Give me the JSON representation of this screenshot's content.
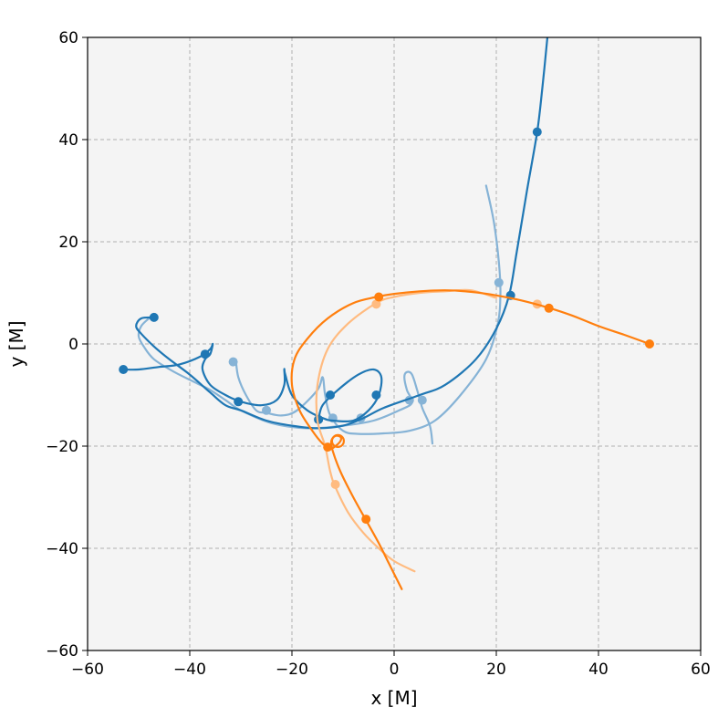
{
  "chart_data": {
    "type": "line",
    "title": "",
    "xlabel": "x [M]",
    "ylabel": "y [M]",
    "xlim": [
      -60,
      60
    ],
    "ylim": [
      -60,
      60
    ],
    "xticks": [
      -60,
      -40,
      -20,
      0,
      20,
      40,
      60
    ],
    "yticks": [
      -60,
      -40,
      -20,
      0,
      20,
      40,
      60
    ],
    "xtick_labels": [
      "−60",
      "−40",
      "−20",
      "0",
      "20",
      "40",
      "60"
    ],
    "ytick_labels": [
      "−60",
      "−40",
      "−20",
      "0",
      "20",
      "40",
      "60"
    ],
    "grid": true,
    "colors": {
      "blue": "#1f77b4",
      "orange": "#ff7f0e",
      "light_blue": "#86b3d6",
      "light_orange": "#ffbb80",
      "panel": "#f4f4f4",
      "grid": "#b0b0b0"
    },
    "series": [
      {
        "color": "#86b3d6",
        "points": [
          [
            18,
            31
          ],
          [
            19.5,
            24
          ],
          [
            20.5,
            16
          ],
          [
            20.8,
            10
          ],
          [
            20.3,
            4
          ],
          [
            18,
            -3
          ],
          [
            13,
            -10
          ],
          [
            8,
            -15
          ],
          [
            3,
            -17
          ],
          [
            -2,
            -17.5
          ],
          [
            -7,
            -17.6
          ],
          [
            -10,
            -17
          ],
          [
            -12.5,
            -14
          ],
          [
            -13.5,
            -10
          ],
          [
            -14,
            -6.5
          ],
          [
            -15,
            -9
          ],
          [
            -19,
            -13
          ],
          [
            -22,
            -14
          ],
          [
            -25,
            -13.5
          ],
          [
            -27,
            -13
          ],
          [
            -29,
            -10
          ],
          [
            -30.5,
            -6.5
          ],
          [
            -31,
            -3
          ]
        ],
        "markers": [
          [
            20.5,
            12
          ],
          [
            -6.5,
            -14.5
          ],
          [
            -25,
            -13
          ],
          [
            -31.5,
            -3.5
          ]
        ]
      },
      {
        "color": "#86b3d6",
        "points": [
          [
            7.5,
            -19.5
          ],
          [
            7,
            -16
          ],
          [
            5.5,
            -12.5
          ],
          [
            4.5,
            -9
          ],
          [
            3.5,
            -6
          ],
          [
            2.5,
            -5.5
          ],
          [
            2,
            -6.5
          ],
          [
            2.5,
            -9
          ],
          [
            3.5,
            -11.5
          ],
          [
            1,
            -13
          ],
          [
            -4,
            -15
          ],
          [
            -10,
            -16
          ],
          [
            -17,
            -16.5
          ],
          [
            -24,
            -15.5
          ],
          [
            -30,
            -13
          ],
          [
            -33,
            -11
          ],
          [
            -36,
            -9
          ],
          [
            -39,
            -7.5
          ],
          [
            -43,
            -5.5
          ],
          [
            -47,
            -3
          ],
          [
            -49,
            -0.5
          ],
          [
            -50,
            1.5
          ],
          [
            -49.5,
            3.5
          ],
          [
            -48,
            5
          ]
        ],
        "markers": [
          [
            5.5,
            -11
          ],
          [
            3,
            -11
          ],
          [
            -12,
            -14.5
          ],
          [
            -14.8,
            -14.8
          ]
        ]
      },
      {
        "color": "#1f77b4",
        "points": [
          [
            30,
            60
          ],
          [
            29,
            50
          ],
          [
            28,
            41.5
          ],
          [
            26,
            30
          ],
          [
            24,
            18
          ],
          [
            22.5,
            9.5
          ],
          [
            20,
            3
          ],
          [
            16,
            -3
          ],
          [
            10,
            -8
          ],
          [
            5,
            -10
          ],
          [
            -2,
            -12.5
          ],
          [
            -6,
            -14.5
          ],
          [
            -10,
            -16
          ],
          [
            -15,
            -16.5
          ],
          [
            -20,
            -16
          ],
          [
            -25,
            -15
          ],
          [
            -30,
            -13
          ],
          [
            -33,
            -12
          ],
          [
            -36,
            -9.5
          ],
          [
            -40,
            -6
          ],
          [
            -44,
            -3
          ],
          [
            -47,
            -0.5
          ],
          [
            -49.5,
            2
          ],
          [
            -50.5,
            3.5
          ],
          [
            -49.5,
            5
          ],
          [
            -47,
            5.2
          ]
        ],
        "markers": [
          [
            28,
            41.5
          ],
          [
            22.8,
            9.5
          ],
          [
            -12.5,
            -10
          ],
          [
            -30.5,
            -11.3
          ],
          [
            -47,
            5.2
          ]
        ]
      },
      {
        "color": "#1f77b4",
        "points": [
          [
            -53,
            -5
          ],
          [
            -50,
            -5
          ],
          [
            -46,
            -4.5
          ],
          [
            -42,
            -4
          ],
          [
            -38,
            -2.5
          ],
          [
            -36,
            -1
          ],
          [
            -35.5,
            0
          ],
          [
            -36,
            -2
          ],
          [
            -37,
            -3
          ],
          [
            -37.5,
            -5
          ],
          [
            -36,
            -8
          ],
          [
            -33,
            -10
          ],
          [
            -30,
            -11.3
          ],
          [
            -26,
            -12
          ],
          [
            -23,
            -11
          ],
          [
            -21.5,
            -8
          ],
          [
            -21.5,
            -5
          ],
          [
            -21.3,
            -6
          ],
          [
            -20,
            -10
          ],
          [
            -17,
            -13
          ],
          [
            -14,
            -14.5
          ],
          [
            -12,
            -15
          ],
          [
            -8,
            -15
          ],
          [
            -5,
            -13
          ],
          [
            -3,
            -10
          ],
          [
            -2.5,
            -6.5
          ],
          [
            -4,
            -5
          ],
          [
            -7,
            -6
          ],
          [
            -11,
            -9
          ],
          [
            -14,
            -12
          ],
          [
            -14.8,
            -14.8
          ]
        ],
        "markers": [
          [
            -53,
            -5
          ],
          [
            -37,
            -2
          ],
          [
            -3.5,
            -10
          ],
          [
            -14.8,
            -14.8
          ]
        ]
      },
      {
        "color": "#ffbb80",
        "points": [
          [
            20,
            9
          ],
          [
            15,
            10.5
          ],
          [
            10,
            10.3
          ],
          [
            5,
            10
          ],
          [
            0,
            9.2
          ],
          [
            -3.5,
            8
          ],
          [
            -9,
            4
          ],
          [
            -13,
            -1
          ],
          [
            -15,
            -8
          ],
          [
            -15,
            -15
          ],
          [
            -13.5,
            -20
          ],
          [
            -12.5,
            -25
          ],
          [
            -11.5,
            -28
          ],
          [
            -9,
            -33
          ],
          [
            -6,
            -37
          ],
          [
            -3,
            -40
          ],
          [
            0,
            -42.5
          ],
          [
            4,
            -44.5
          ]
        ],
        "markers": [
          [
            28,
            7.8
          ],
          [
            -3.5,
            7.8
          ],
          [
            -11.5,
            -27.5
          ]
        ]
      },
      {
        "color": "#ff7f0e",
        "points": [
          [
            50,
            0
          ],
          [
            45,
            1.8
          ],
          [
            40,
            3.5
          ],
          [
            35,
            5.5
          ],
          [
            30.5,
            7
          ],
          [
            25,
            8.5
          ],
          [
            20,
            9.5
          ],
          [
            15,
            10.2
          ],
          [
            10,
            10.5
          ],
          [
            5,
            10.3
          ],
          [
            0,
            9.8
          ],
          [
            -3.5,
            9.2
          ],
          [
            -8,
            8
          ],
          [
            -13,
            5
          ],
          [
            -17,
            1
          ],
          [
            -19.5,
            -3
          ],
          [
            -20,
            -8
          ],
          [
            -18.5,
            -13
          ],
          [
            -16,
            -17
          ],
          [
            -14,
            -19.5
          ],
          [
            -12.5,
            -20.5
          ],
          [
            -11.5,
            -20
          ],
          [
            -10.5,
            -19
          ],
          [
            -10.5,
            -18.2
          ],
          [
            -11.5,
            -18
          ],
          [
            -12.3,
            -19
          ],
          [
            -12,
            -21
          ],
          [
            -10.5,
            -25
          ],
          [
            -8,
            -30
          ],
          [
            -5.5,
            -34.5
          ],
          [
            -3,
            -39
          ],
          [
            -1,
            -43
          ],
          [
            1.5,
            -48
          ]
        ],
        "markers": [
          [
            50,
            0
          ],
          [
            30.3,
            7
          ],
          [
            -3,
            9.2
          ],
          [
            -13,
            -20.2
          ],
          [
            -5.5,
            -34.3
          ]
        ],
        "open_markers": [
          [
            -11,
            -19
          ]
        ]
      }
    ]
  }
}
